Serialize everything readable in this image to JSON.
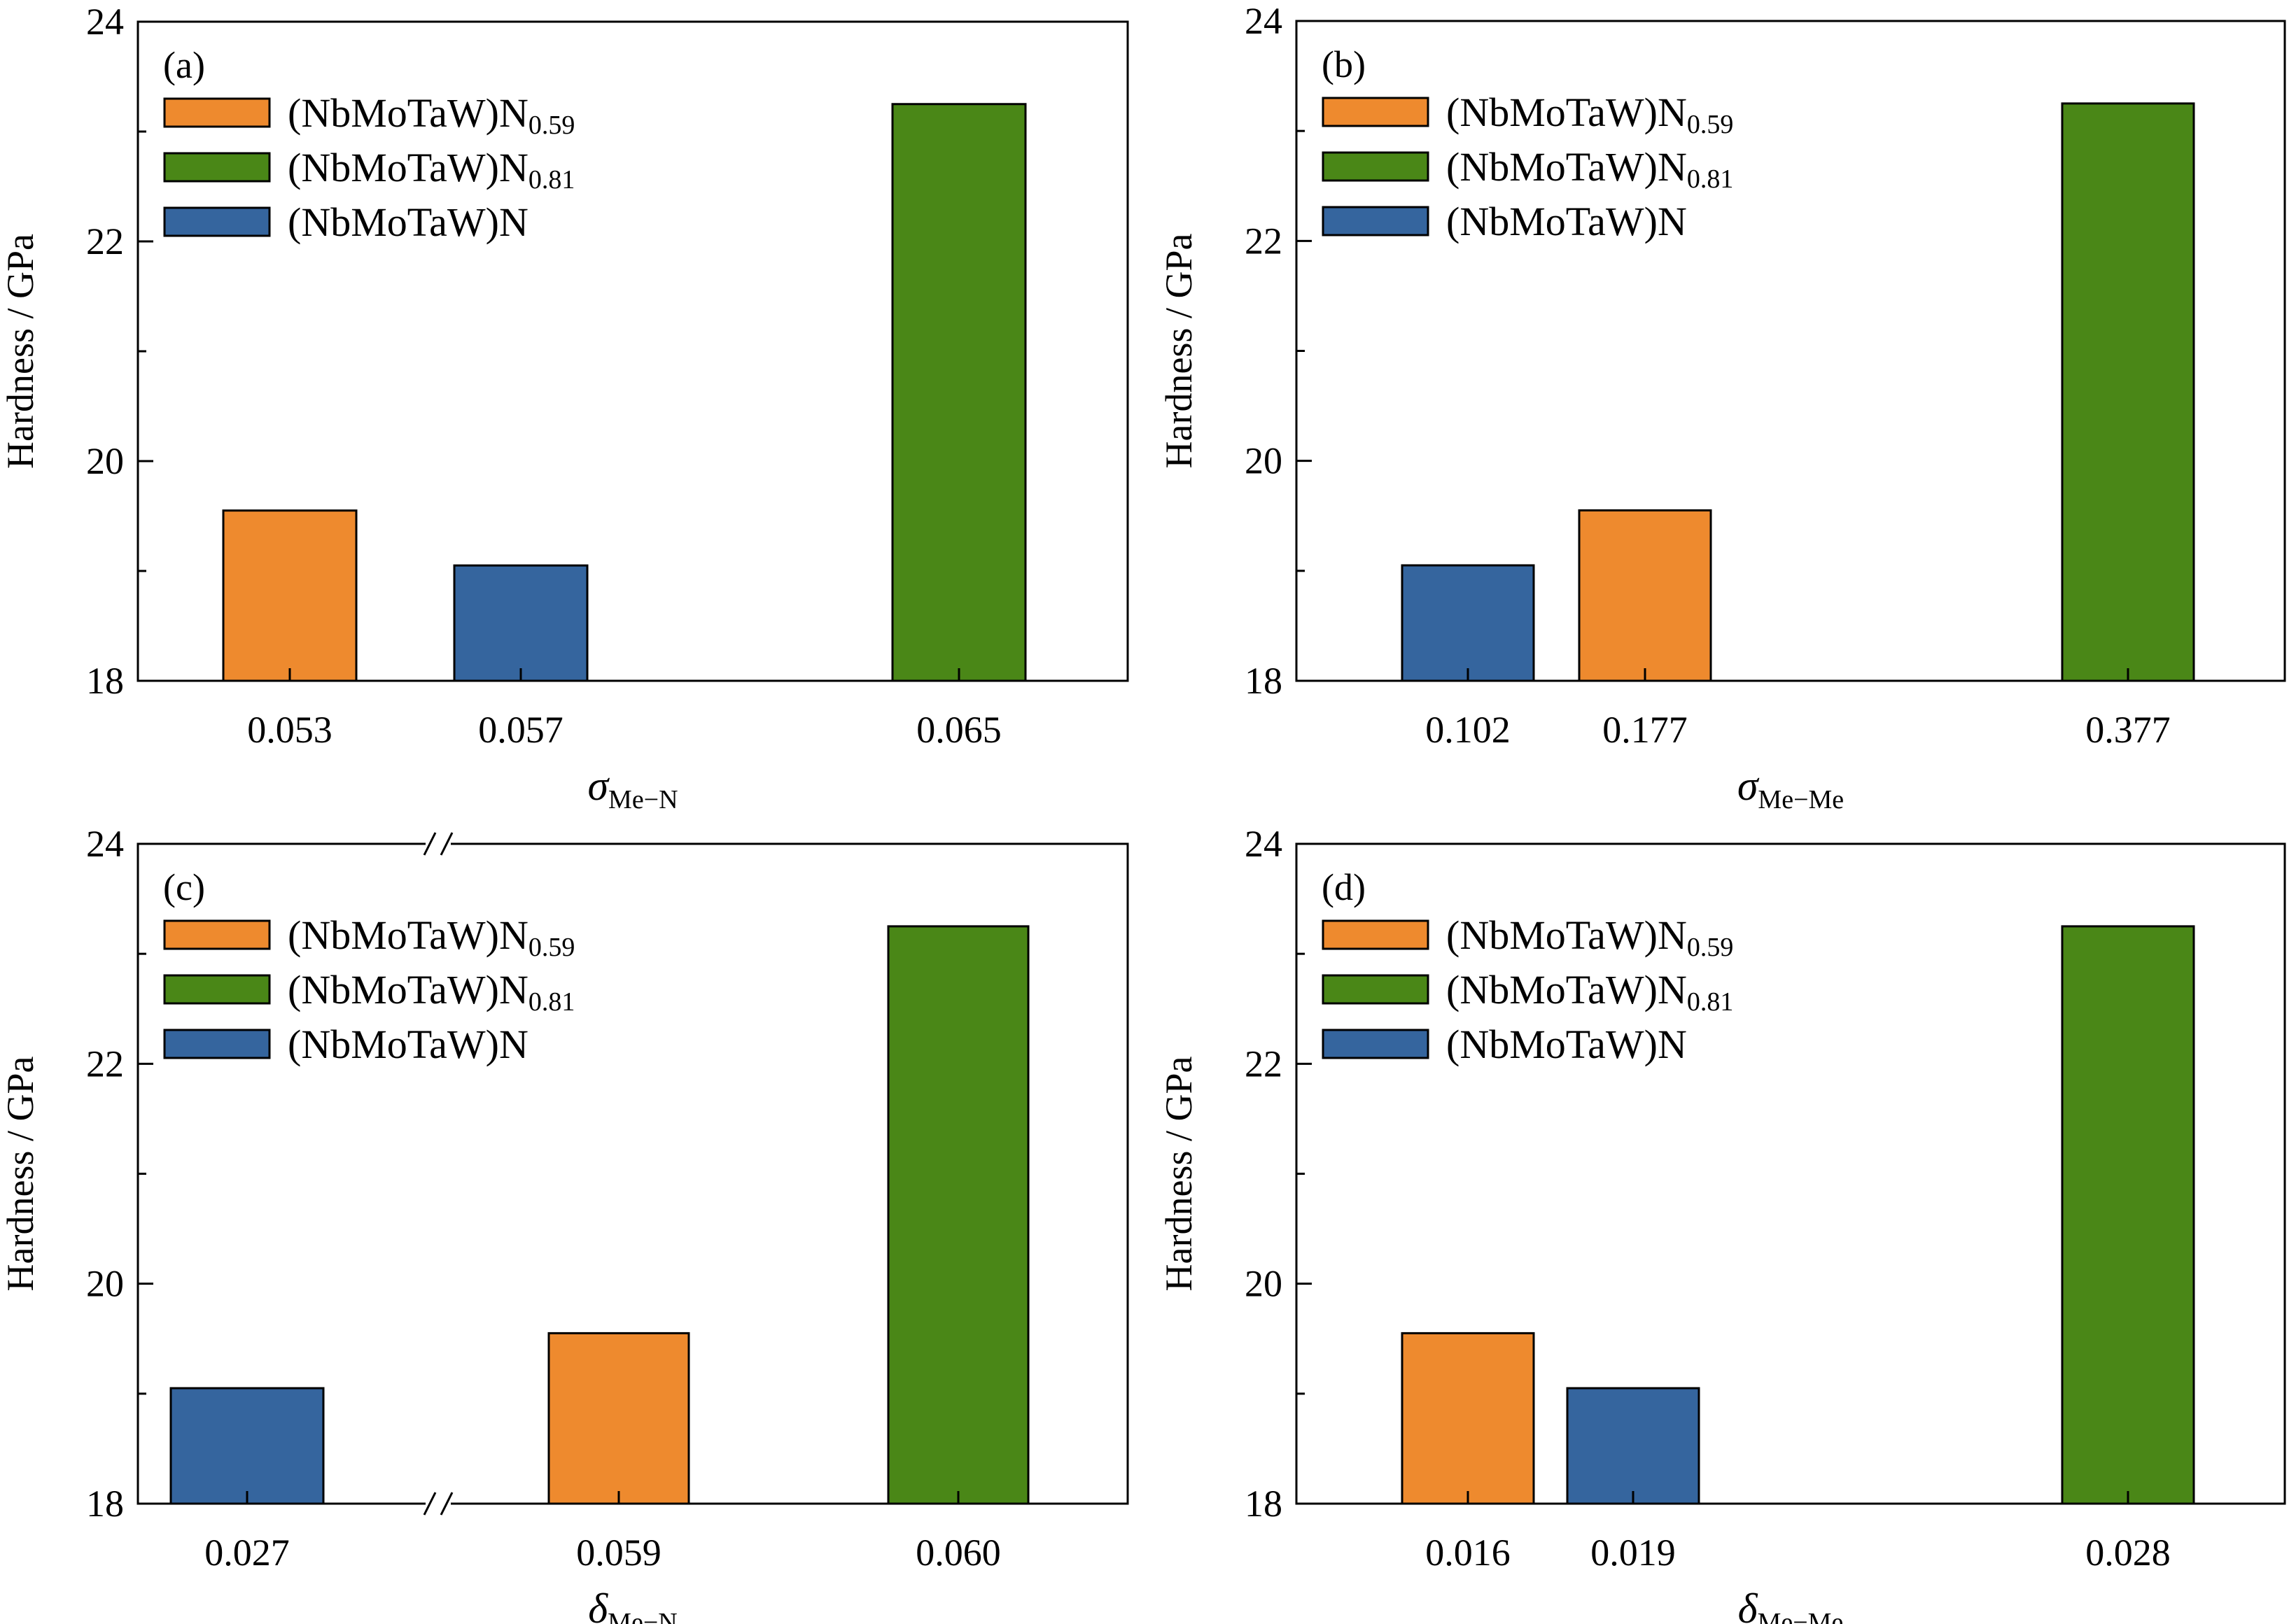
{
  "colors": {
    "N0.59": "#ee8a2e",
    "N0.81": "#4a8717",
    "N": "#35659e"
  },
  "legend": [
    {
      "key": "N0.59",
      "base": "(NbMoTaW)N",
      "sub": "0.59"
    },
    {
      "key": "N0.81",
      "base": "(NbMoTaW)N",
      "sub": "0.81"
    },
    {
      "key": "N",
      "base": "(NbMoTaW)N",
      "sub": ""
    }
  ],
  "chart_data": [
    {
      "type": "bar",
      "panel": "(a)",
      "ylabel": "Hardness / GPa",
      "xlabel_symbol": "σ",
      "xlabel_sub": "Me−N",
      "ylim": [
        18,
        24
      ],
      "yticks": [
        "18",
        "20",
        "22",
        "24"
      ],
      "axis_break": false,
      "legend_position": "top-left",
      "bars": [
        {
          "x": "0.053",
          "value": 19.55,
          "series": "N0.59"
        },
        {
          "x": "0.057",
          "value": 19.05,
          "series": "N"
        },
        {
          "x": "0.065",
          "value": 23.25,
          "series": "N0.81"
        }
      ]
    },
    {
      "type": "bar",
      "panel": "(b)",
      "ylabel": "Hardness / GPa",
      "xlabel_symbol": "σ",
      "xlabel_sub": "Me−Me",
      "ylim": [
        18,
        24
      ],
      "yticks": [
        "18",
        "20",
        "22",
        "24"
      ],
      "axis_break": false,
      "legend_position": "top-left",
      "bars": [
        {
          "x": "0.102",
          "value": 19.05,
          "series": "N"
        },
        {
          "x": "0.177",
          "value": 19.55,
          "series": "N0.59"
        },
        {
          "x": "0.377",
          "value": 23.25,
          "series": "N0.81"
        }
      ]
    },
    {
      "type": "bar",
      "panel": "(c)",
      "ylabel": "Hardness / GPa",
      "xlabel_symbol": "δ",
      "xlabel_sub": "Me−N",
      "ylim": [
        18,
        24
      ],
      "yticks": [
        "18",
        "20",
        "22",
        "24"
      ],
      "axis_break": true,
      "legend_position": "top-left",
      "bars": [
        {
          "x": "0.027",
          "value": 19.05,
          "series": "N"
        },
        {
          "x": "0.059",
          "value": 19.55,
          "series": "N0.59"
        },
        {
          "x": "0.060",
          "value": 23.25,
          "series": "N0.81"
        }
      ]
    },
    {
      "type": "bar",
      "panel": "(d)",
      "ylabel": "Hardness / GPa",
      "xlabel_symbol": "δ",
      "xlabel_sub": "Me−Me",
      "ylim": [
        18,
        24
      ],
      "yticks": [
        "18",
        "20",
        "22",
        "24"
      ],
      "axis_break": false,
      "legend_position": "top-left",
      "bars": [
        {
          "x": "0.016",
          "value": 19.55,
          "series": "N0.59"
        },
        {
          "x": "0.019",
          "value": 19.05,
          "series": "N"
        },
        {
          "x": "0.028",
          "value": 23.25,
          "series": "N0.81"
        }
      ]
    }
  ]
}
